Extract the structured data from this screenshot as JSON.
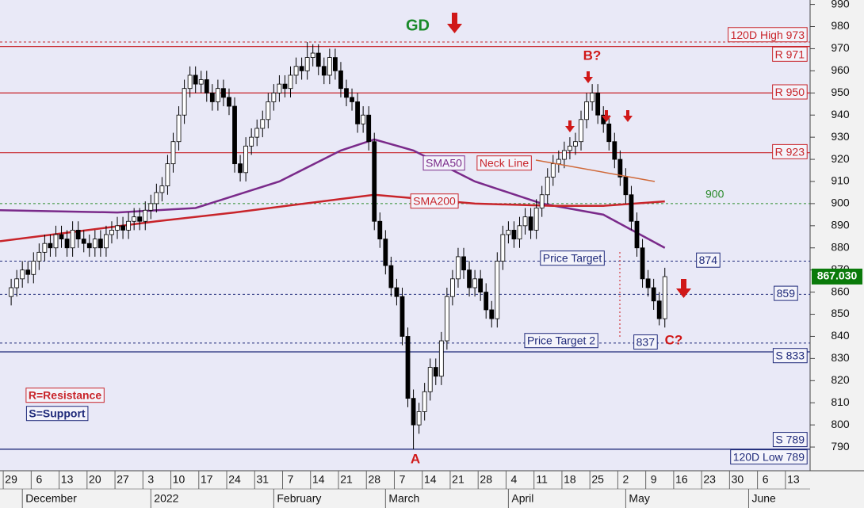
{
  "chart_data": {
    "type": "candlestick",
    "open": [
      858,
      862,
      866,
      870,
      868,
      874,
      878,
      882,
      880,
      886,
      884,
      880,
      888,
      884,
      882,
      880,
      884,
      880,
      886,
      888,
      890,
      888,
      892,
      894,
      892,
      897,
      900,
      905,
      908,
      918,
      928,
      940,
      952,
      958,
      954,
      956,
      950,
      946,
      952,
      948,
      944,
      918,
      914,
      926,
      930,
      934,
      938,
      946,
      950,
      954,
      952,
      958,
      962,
      960,
      966,
      968,
      962,
      958,
      966,
      960,
      952,
      948,
      946,
      936,
      940,
      928,
      892,
      884,
      872,
      862,
      858,
      840,
      812,
      800,
      806,
      815,
      826,
      822,
      838,
      858,
      866,
      876,
      870,
      862,
      866,
      860,
      852,
      848,
      874,
      886,
      888,
      884,
      890,
      894,
      888,
      898,
      904,
      912,
      918,
      920,
      924,
      926,
      928,
      938,
      946,
      950,
      940,
      936,
      928,
      920,
      912,
      904,
      892,
      880,
      866,
      862,
      856,
      848
    ],
    "high": [
      866,
      870,
      874,
      874,
      878,
      882,
      886,
      886,
      890,
      890,
      888,
      892,
      892,
      888,
      886,
      888,
      888,
      890,
      892,
      894,
      894,
      896,
      898,
      898,
      901,
      904,
      909,
      912,
      922,
      932,
      944,
      956,
      962,
      962,
      960,
      960,
      954,
      956,
      956,
      952,
      948,
      922,
      930,
      934,
      938,
      942,
      950,
      954,
      958,
      958,
      962,
      966,
      966,
      973,
      972,
      972,
      966,
      970,
      970,
      964,
      956,
      952,
      950,
      944,
      944,
      932,
      896,
      888,
      876,
      866,
      862,
      844,
      816,
      810,
      819,
      830,
      830,
      842,
      862,
      870,
      880,
      880,
      874,
      870,
      870,
      864,
      856,
      878,
      890,
      892,
      892,
      894,
      898,
      898,
      902,
      908,
      916,
      922,
      924,
      928,
      930,
      932,
      942,
      950,
      954,
      954,
      944,
      940,
      932,
      924,
      916,
      908,
      896,
      884,
      870,
      866,
      860,
      871
    ],
    "low": [
      854,
      858,
      862,
      864,
      864,
      870,
      874,
      876,
      876,
      880,
      876,
      876,
      880,
      878,
      876,
      876,
      876,
      876,
      882,
      884,
      884,
      884,
      888,
      888,
      888,
      893,
      896,
      901,
      904,
      914,
      924,
      936,
      948,
      950,
      950,
      946,
      942,
      942,
      944,
      940,
      914,
      910,
      910,
      922,
      926,
      930,
      934,
      942,
      946,
      948,
      948,
      954,
      956,
      956,
      962,
      958,
      954,
      954,
      956,
      948,
      944,
      942,
      932,
      932,
      924,
      888,
      880,
      868,
      858,
      854,
      836,
      808,
      789,
      796,
      802,
      811,
      818,
      818,
      834,
      854,
      862,
      866,
      858,
      858,
      856,
      848,
      844,
      844,
      870,
      882,
      880,
      880,
      886,
      884,
      884,
      894,
      900,
      908,
      914,
      916,
      920,
      922,
      924,
      934,
      942,
      936,
      932,
      924,
      916,
      908,
      900,
      888,
      876,
      862,
      858,
      852,
      845,
      844
    ],
    "close": [
      862,
      866,
      870,
      868,
      874,
      878,
      882,
      880,
      886,
      884,
      880,
      888,
      884,
      882,
      880,
      884,
      880,
      886,
      888,
      890,
      888,
      892,
      894,
      892,
      897,
      900,
      905,
      908,
      918,
      928,
      940,
      952,
      958,
      954,
      956,
      950,
      946,
      952,
      948,
      944,
      918,
      914,
      926,
      930,
      934,
      938,
      946,
      950,
      954,
      952,
      958,
      962,
      960,
      966,
      968,
      962,
      958,
      966,
      960,
      952,
      948,
      946,
      936,
      940,
      928,
      892,
      884,
      872,
      862,
      858,
      840,
      812,
      800,
      806,
      815,
      826,
      822,
      838,
      858,
      866,
      876,
      870,
      862,
      866,
      860,
      852,
      848,
      874,
      886,
      888,
      884,
      890,
      894,
      888,
      898,
      904,
      912,
      918,
      920,
      924,
      926,
      928,
      938,
      946,
      950,
      940,
      936,
      928,
      920,
      912,
      904,
      892,
      880,
      866,
      862,
      856,
      848,
      867
    ],
    "up_color": "#ffffff",
    "down_color": "#000000",
    "series": [
      {
        "name": "SMA50",
        "color": "#7a2a8a",
        "x": [
          -2,
          19,
          33,
          48,
          59,
          65,
          72,
          83,
          95,
          106,
          117
        ],
        "values": [
          897,
          896,
          898,
          910,
          924,
          929,
          924,
          910,
          900,
          895,
          880
        ]
      },
      {
        "name": "SMA200",
        "color": "#c8242a",
        "x": [
          -2,
          26,
          40,
          65,
          83,
          97,
          106,
          117
        ],
        "values": [
          883,
          892,
          896,
          904,
          900,
          899,
          899,
          901
        ]
      }
    ],
    "xlim": [
      -2,
      143
    ],
    "ylim": [
      780,
      992
    ],
    "yticks": [
      790,
      800,
      810,
      820,
      830,
      840,
      850,
      860,
      870,
      880,
      890,
      900,
      910,
      920,
      930,
      940,
      950,
      960,
      970,
      980,
      990
    ],
    "xticks": [
      {
        "value": 0,
        "label": "29"
      },
      {
        "value": 5,
        "label": "6"
      },
      {
        "value": 10,
        "label": "13"
      },
      {
        "value": 15,
        "label": "20"
      },
      {
        "value": 20,
        "label": "27"
      },
      {
        "value": 25,
        "label": "3"
      },
      {
        "value": 30,
        "label": "10"
      },
      {
        "value": 35,
        "label": "17"
      },
      {
        "value": 40,
        "label": "24"
      },
      {
        "value": 45,
        "label": "31"
      },
      {
        "value": 50,
        "label": "7"
      },
      {
        "value": 55,
        "label": "14"
      },
      {
        "value": 60,
        "label": "21"
      },
      {
        "value": 65,
        "label": "28"
      },
      {
        "value": 70,
        "label": "7"
      },
      {
        "value": 75,
        "label": "14"
      },
      {
        "value": 80,
        "label": "21"
      },
      {
        "value": 85,
        "label": "28"
      },
      {
        "value": 90,
        "label": "4"
      },
      {
        "value": 95,
        "label": "11"
      },
      {
        "value": 100,
        "label": "18"
      },
      {
        "value": 105,
        "label": "25"
      },
      {
        "value": 110,
        "label": "2"
      },
      {
        "value": 115,
        "label": "9"
      },
      {
        "value": 120,
        "label": "16"
      },
      {
        "value": 125,
        "label": "23"
      },
      {
        "value": 130,
        "label": "30"
      },
      {
        "value": 135,
        "label": "6"
      },
      {
        "value": 140,
        "label": "13"
      }
    ],
    "month_ticks": [
      {
        "value": 2,
        "label": "December"
      },
      {
        "value": 25,
        "label": "2022"
      },
      {
        "value": 47,
        "label": "February"
      },
      {
        "value": 67,
        "label": "March"
      },
      {
        "value": 89,
        "label": "April"
      },
      {
        "value": 110,
        "label": "May"
      },
      {
        "value": 132,
        "label": "June"
      }
    ],
    "hlines": [
      {
        "value": 973,
        "label": "120D High 973",
        "color": "#c8242a",
        "dashed": true,
        "box": true
      },
      {
        "value": 971,
        "label": "R 971",
        "color": "#c8242a",
        "dashed": false,
        "box": true
      },
      {
        "value": 950,
        "label": "R 950",
        "color": "#c8242a",
        "dashed": false,
        "box": true
      },
      {
        "value": 923,
        "label": "R 923",
        "color": "#c8242a",
        "dashed": false,
        "box": true
      },
      {
        "value": 900,
        "label": "900",
        "color": "#2a8a2a",
        "dashed": true,
        "box": false
      },
      {
        "value": 874,
        "label": "874",
        "color": "#1f2a7a",
        "dashed": true,
        "box": true
      },
      {
        "value": 859,
        "label": "859",
        "color": "#1f2a7a",
        "dashed": true,
        "box": true
      },
      {
        "value": 837,
        "label": "837",
        "color": "#1f2a7a",
        "dashed": true,
        "box": true
      },
      {
        "value": 833,
        "label": "S 833",
        "color": "#1f2a7a",
        "dashed": false,
        "box": true
      },
      {
        "value": 789,
        "label": "S 789",
        "color": "#1f2a7a",
        "dashed": false,
        "box": true
      },
      {
        "value": 789,
        "label": "120D Low 789",
        "color": "#1f2a7a",
        "dashed": false,
        "box": true
      }
    ],
    "last_price": {
      "value": 867.03,
      "label": "867.030"
    },
    "annotations": {
      "gd": "GD",
      "b": "B?",
      "a": "A",
      "c": "C?",
      "price_target": "Price Target",
      "price_target_2": "Price Target 2",
      "neck_line": "Neck Line",
      "legend_r": "R=Resistance",
      "legend_s": "S=Support"
    }
  }
}
